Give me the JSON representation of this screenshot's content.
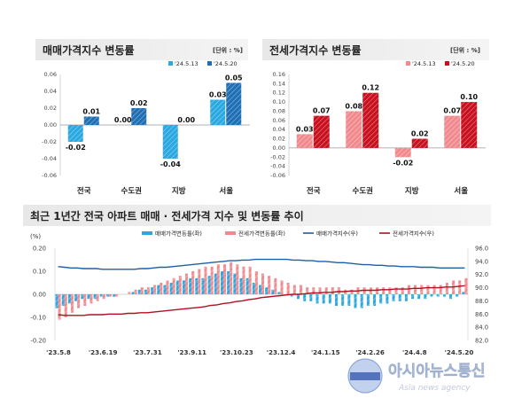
{
  "chart_data": [
    {
      "type": "bar",
      "title": "매매가격지수 변동률",
      "unit": "[단위 : %]",
      "categories": [
        "전국",
        "수도권",
        "지방",
        "서울"
      ],
      "series": [
        {
          "name": "'24.5.13",
          "values": [
            -0.02,
            0.0,
            -0.04,
            0.03
          ],
          "labels": [
            "-0.02",
            "0.00",
            "-0.04",
            "0.03"
          ],
          "color": "#2aa8e0"
        },
        {
          "name": "'24.5.20",
          "values": [
            0.01,
            0.02,
            0.0,
            0.05
          ],
          "labels": [
            "0.01",
            "0.02",
            "0.00",
            "0.05"
          ],
          "color": "#1f6fb5"
        }
      ],
      "ylim": [
        -0.06,
        0.06
      ],
      "yticks": [
        "0.06",
        "0.04",
        "0.02",
        "0.00",
        "-0.02",
        "-0.04",
        "-0.06"
      ],
      "legend": "top-right"
    },
    {
      "type": "bar",
      "title": "전세가격지수 변동률",
      "unit": "[단위 : %]",
      "categories": [
        "전국",
        "수도권",
        "지방",
        "서울"
      ],
      "series": [
        {
          "name": "'24.5.13",
          "values": [
            0.03,
            0.08,
            -0.02,
            0.07
          ],
          "labels": [
            "0.03",
            "0.08",
            "-0.02",
            "0.07"
          ],
          "color": "#f08a8e"
        },
        {
          "name": "'24.5.20",
          "values": [
            0.07,
            0.12,
            0.02,
            0.1
          ],
          "labels": [
            "0.07",
            "0.12",
            "0.02",
            "0.10"
          ],
          "color": "#c8101e"
        }
      ],
      "ylim": [
        -0.06,
        0.16
      ],
      "yticks": [
        "0.16",
        "0.14",
        "0.12",
        "0.10",
        "0.08",
        "0.06",
        "0.04",
        "0.02",
        "0.00",
        "-0.02",
        "-0.04",
        "-0.06"
      ],
      "legend": "top-right"
    },
    {
      "type": "bar+line",
      "title": "최근 1년간 전국 아파트 매매 · 전세가격 지수 및 변동률 추이",
      "left_unit": "(%)",
      "ylim_left": [
        -0.2,
        0.2
      ],
      "yticks_left": [
        "0.20",
        "0.10",
        "0.00",
        "-0.10",
        "-0.20"
      ],
      "ylim_right": [
        82.0,
        96.0
      ],
      "yticks_right": [
        "96.0",
        "94.0",
        "92.0",
        "90.0",
        "88.0",
        "86.0",
        "84.0",
        "82.0"
      ],
      "xtick_labels": [
        "'23.5.8",
        "'23.6.19",
        "'23.7.31",
        "'23.9.11",
        "'23.10.23",
        "'23.12.4",
        "'24.1.15",
        "'24.2.26",
        "'24.4.8",
        "'24.5.20"
      ],
      "legend": [
        "매매가격변동률(좌)",
        "전세가격변동률(좌)",
        "매매가격지수(우)",
        "전세가격지수(우)"
      ],
      "colors": {
        "sale_rate": "#2aa8e0",
        "jeonse_rate": "#f08a8e",
        "sale_index": "#1f5fa8",
        "jeonse_index": "#b01020"
      },
      "sale_rate": [
        -0.06,
        -0.05,
        -0.04,
        -0.03,
        -0.02,
        -0.02,
        -0.02,
        -0.01,
        -0.01,
        -0.01,
        0.0,
        0.0,
        0.01,
        0.02,
        0.02,
        0.03,
        0.04,
        0.04,
        0.05,
        0.06,
        0.06,
        0.07,
        0.07,
        0.07,
        0.08,
        0.09,
        0.1,
        0.1,
        0.09,
        0.07,
        0.07,
        0.05,
        0.04,
        0.03,
        0.02,
        0.01,
        0.0,
        -0.01,
        -0.02,
        -0.03,
        -0.03,
        -0.04,
        -0.04,
        -0.04,
        -0.05,
        -0.05,
        -0.05,
        -0.06,
        -0.06,
        -0.05,
        -0.05,
        -0.04,
        -0.04,
        -0.03,
        -0.03,
        -0.03,
        -0.02,
        -0.02,
        -0.02,
        -0.01,
        -0.01,
        -0.01,
        -0.02,
        -0.01,
        0.01
      ],
      "jeonse_rate": [
        -0.11,
        -0.1,
        -0.08,
        -0.06,
        -0.05,
        -0.04,
        -0.03,
        -0.02,
        -0.01,
        -0.01,
        0.0,
        0.01,
        0.02,
        0.03,
        0.03,
        0.04,
        0.05,
        0.06,
        0.07,
        0.08,
        0.09,
        0.1,
        0.11,
        0.12,
        0.12,
        0.13,
        0.13,
        0.14,
        0.13,
        0.12,
        0.12,
        0.1,
        0.09,
        0.08,
        0.07,
        0.06,
        0.05,
        0.04,
        0.04,
        0.03,
        0.03,
        0.03,
        0.03,
        0.03,
        0.03,
        0.02,
        0.02,
        0.03,
        0.03,
        0.03,
        0.03,
        0.03,
        0.03,
        0.03,
        0.03,
        0.04,
        0.04,
        0.04,
        0.04,
        0.04,
        0.04,
        0.05,
        0.06,
        0.06,
        0.07
      ],
      "sale_index": [
        93.2,
        93.1,
        93.0,
        93.0,
        92.9,
        92.9,
        92.9,
        92.8,
        92.8,
        92.8,
        92.8,
        92.8,
        92.8,
        92.9,
        92.9,
        93.0,
        93.1,
        93.1,
        93.2,
        93.3,
        93.4,
        93.5,
        93.6,
        93.7,
        93.8,
        93.9,
        94.0,
        94.1,
        94.1,
        94.2,
        94.2,
        94.3,
        94.3,
        94.3,
        94.3,
        94.3,
        94.3,
        94.2,
        94.2,
        94.1,
        94.1,
        94.0,
        94.0,
        93.9,
        93.8,
        93.8,
        93.7,
        93.6,
        93.5,
        93.5,
        93.4,
        93.4,
        93.3,
        93.3,
        93.2,
        93.2,
        93.2,
        93.1,
        93.1,
        93.1,
        93.0,
        93.0,
        93.0,
        93.0,
        93.0
      ],
      "jeonse_index": [
        85.9,
        85.8,
        85.8,
        85.8,
        85.8,
        85.9,
        85.9,
        85.9,
        86.0,
        86.0,
        86.0,
        86.1,
        86.1,
        86.2,
        86.2,
        86.3,
        86.4,
        86.5,
        86.6,
        86.7,
        86.8,
        86.9,
        87.0,
        87.1,
        87.3,
        87.4,
        87.6,
        87.7,
        87.9,
        88.0,
        88.2,
        88.3,
        88.5,
        88.6,
        88.7,
        88.8,
        88.9,
        89.0,
        89.0,
        89.1,
        89.2,
        89.2,
        89.3,
        89.3,
        89.4,
        89.4,
        89.5,
        89.5,
        89.6,
        89.6,
        89.6,
        89.7,
        89.7,
        89.8,
        89.8,
        89.8,
        89.9,
        89.9,
        90.0,
        90.0,
        90.0,
        90.1,
        90.1,
        90.2,
        90.3
      ]
    }
  ],
  "watermark": {
    "korean": "아시아뉴스통신",
    "english": "Asia news agency",
    "seal_text": "아시아뉴스통신"
  }
}
